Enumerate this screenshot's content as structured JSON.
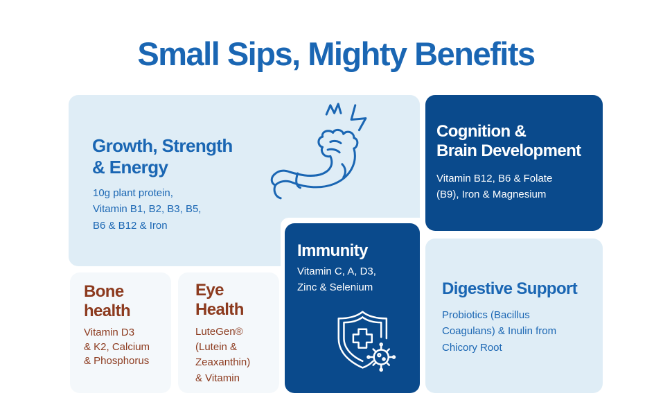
{
  "title": "Small Sips, Mighty Benefits",
  "colors": {
    "accent_blue": "#1a66b3",
    "navy": "#0a4a8c",
    "light_blue": "#dfedf6",
    "pale": "#f4f8fb",
    "brown": "#8c3a1e"
  },
  "cards": {
    "growth": {
      "heading": "Growth, Strength\n& Energy",
      "body": "10g plant protein,\nVitamin B1, B2, B3, B5,\nB6 & B12 & Iron",
      "icon": "flexed-arm-icon"
    },
    "cognition": {
      "heading": "Cognition &\nBrain Development",
      "body": "Vitamin B12, B6 & Folate\n(B9), Iron & Magnesium"
    },
    "immunity": {
      "heading": "Immunity",
      "body": "Vitamin C, A, D3,\nZinc & Selenium",
      "icon": "shield-virus-icon"
    },
    "digestive": {
      "heading": "Digestive Support",
      "body": "Probiotics (Bacillus\nCoagulans) & Inulin from\nChicory Root"
    },
    "bone": {
      "heading": "Bone\nhealth",
      "body": "Vitamin D3\n& K2, Calcium\n& Phosphorus"
    },
    "eye": {
      "heading": "Eye\nHealth",
      "body": "LuteGen®\n(Lutein &\nZeaxanthin)\n& Vitamin"
    }
  }
}
